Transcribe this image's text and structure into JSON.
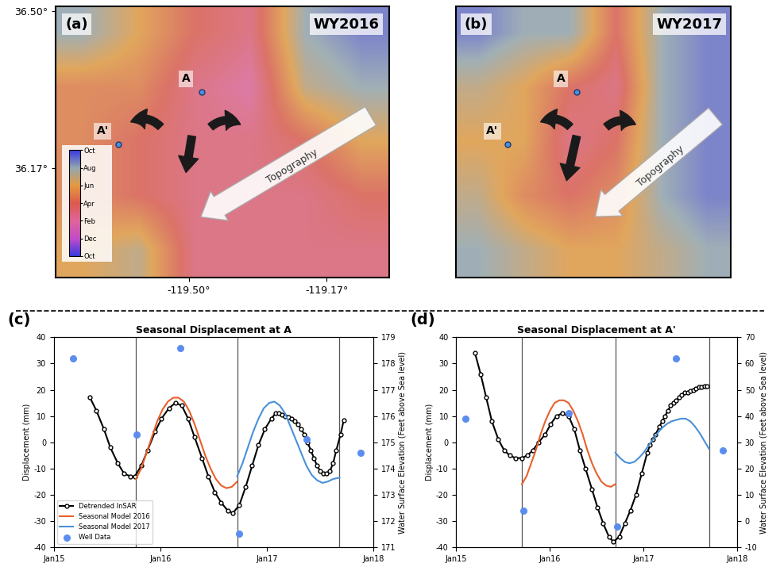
{
  "chart_data": [
    {
      "type": "map",
      "panel": "(a)",
      "title": "WY2016",
      "xlim": [
        -119.82,
        -119.02
      ],
      "ylim": [
        35.94,
        36.51
      ],
      "xticks": [
        {
          "value": -119.5,
          "label": "-119.50°"
        },
        {
          "value": -119.17,
          "label": "-119.17°"
        }
      ],
      "yticks": [
        {
          "value": 36.5,
          "label": "36.50°"
        },
        {
          "value": 36.17,
          "label": "36.17°"
        }
      ],
      "points": [
        {
          "label": "A",
          "x": -119.47,
          "y": 36.33
        },
        {
          "label": "A'",
          "x": -119.67,
          "y": 36.22
        }
      ],
      "arrow_label": "Topography",
      "cells": [
        [
          10,
          8,
          6,
          5,
          10,
          11
        ],
        [
          7,
          7,
          5,
          4,
          9,
          10
        ],
        [
          7,
          6,
          5,
          5,
          6,
          8
        ],
        [
          7,
          6,
          5,
          5,
          5,
          6
        ],
        [
          8,
          9,
          5,
          5,
          5,
          5
        ]
      ],
      "colorbar": {
        "range": [
          0,
          12
        ],
        "ticks": [
          {
            "value": 0,
            "label": "Oct"
          },
          {
            "value": 2,
            "label": "Dec"
          },
          {
            "value": 4,
            "label": "Feb"
          },
          {
            "value": 6,
            "label": "Apr"
          },
          {
            "value": 8,
            "label": "Jun"
          },
          {
            "value": 10,
            "label": "Aug"
          },
          {
            "value": 12,
            "label": "Oct"
          }
        ]
      }
    },
    {
      "type": "map",
      "panel": "(b)",
      "title": "WY2017",
      "tick_labels": false,
      "xlim": [
        -119.82,
        -119.02
      ],
      "ylim": [
        35.94,
        36.51
      ],
      "points": [
        {
          "label": "A",
          "x": -119.47,
          "y": 36.33
        },
        {
          "label": "A'",
          "x": -119.67,
          "y": 36.22
        }
      ],
      "arrow_label": "Topography",
      "cells": [
        [
          11,
          10,
          10,
          6,
          10,
          11
        ],
        [
          9,
          8,
          6,
          5,
          10,
          11
        ],
        [
          8,
          8,
          5,
          6,
          10,
          11
        ],
        [
          9,
          7,
          6,
          7,
          10,
          11
        ],
        [
          10,
          9,
          8,
          8,
          9,
          10
        ]
      ]
    },
    {
      "type": "line",
      "panel": "(c)",
      "title": "Seasonal Displacement at A",
      "y_label": "Displacement (mm)",
      "y2_label": "Water Surface Elevation (Feet above Sea level)",
      "xlim": [
        2015,
        2018
      ],
      "xticks": [
        {
          "value": 2015,
          "label": "Jan15"
        },
        {
          "value": 2016,
          "label": "Jan16"
        },
        {
          "value": 2017,
          "label": "Jan17"
        },
        {
          "value": 2018,
          "label": "Jan18"
        }
      ],
      "ylim": [
        -40,
        40
      ],
      "yticks": [
        -40,
        -30,
        -20,
        -10,
        0,
        10,
        20,
        30,
        40
      ],
      "y2lim": [
        171,
        179
      ],
      "y2ticks": [
        171,
        172,
        173,
        174,
        175,
        176,
        177,
        178,
        179
      ],
      "vlines": [
        2015.77,
        2016.72,
        2017.68
      ],
      "legend": "lower left",
      "series": [
        {
          "name": "Detrended InSAR",
          "color": "#000000",
          "marker": "o",
          "line_style": "solid",
          "x": [
            2015.34,
            2015.4,
            2015.47,
            2015.53,
            2015.6,
            2015.66,
            2015.72,
            2015.76,
            2015.82,
            2015.88,
            2015.95,
            2016.01,
            2016.08,
            2016.14,
            2016.2,
            2016.26,
            2016.32,
            2016.39,
            2016.45,
            2016.51,
            2016.57,
            2016.63,
            2016.68,
            2016.74,
            2016.8,
            2016.86,
            2016.92,
            2016.98,
            2017.04,
            2017.08,
            2017.11,
            2017.14,
            2017.17,
            2017.2,
            2017.23,
            2017.26,
            2017.29,
            2017.32,
            2017.35,
            2017.38,
            2017.41,
            2017.44,
            2017.47,
            2017.5,
            2017.53,
            2017.56,
            2017.59,
            2017.62,
            2017.65,
            2017.69,
            2017.72
          ],
          "values": [
            17,
            12,
            5,
            -2,
            -8,
            -12,
            -13,
            -13,
            -9,
            -3,
            4,
            9,
            13,
            15,
            14,
            9,
            2,
            -6,
            -13,
            -19,
            -23,
            -26,
            -27,
            -24,
            -17,
            -9,
            -1,
            5,
            9,
            11,
            11,
            10.5,
            10,
            9.5,
            9,
            8,
            7,
            5,
            3,
            0,
            -3,
            -6,
            -9,
            -11,
            -12,
            -12,
            -11,
            -8,
            -3,
            3,
            8.5
          ]
        },
        {
          "name": "Seasonal Model 2016",
          "color": "#e8602c",
          "marker": "none",
          "line_style": "solid",
          "x": [
            2015.77,
            2015.82,
            2015.87,
            2015.92,
            2015.97,
            2016.02,
            2016.07,
            2016.12,
            2016.17,
            2016.22,
            2016.27,
            2016.32,
            2016.37,
            2016.42,
            2016.47,
            2016.52,
            2016.57,
            2016.62,
            2016.67,
            2016.72
          ],
          "values": [
            -14,
            -10,
            -4,
            2,
            8,
            12.5,
            15.5,
            17,
            17,
            15.5,
            12,
            7,
            1,
            -5,
            -10,
            -14,
            -16.5,
            -17.5,
            -17,
            -15
          ]
        },
        {
          "name": "Seasonal Model 2017",
          "color": "#4a90d9",
          "marker": "none",
          "line_style": "solid",
          "x": [
            2016.72,
            2016.77,
            2016.82,
            2016.87,
            2016.92,
            2016.97,
            2017.02,
            2017.07,
            2017.12,
            2017.17,
            2017.22,
            2017.27,
            2017.32,
            2017.37,
            2017.42,
            2017.47,
            2017.52,
            2017.57,
            2017.62,
            2017.68
          ],
          "values": [
            -13,
            -8,
            -2,
            4,
            9,
            13,
            15,
            15.5,
            14,
            11,
            6,
            1,
            -4,
            -9,
            -12.5,
            -14.5,
            -15.5,
            -15,
            -14,
            -13.5
          ]
        },
        {
          "name": "Well Data",
          "type": "scatter",
          "axis": "y2",
          "color": "#5b8def",
          "marker": "o",
          "x": [
            2015.18,
            2015.78,
            2016.19,
            2016.74,
            2017.37,
            2017.88
          ],
          "values": [
            178.2,
            175.3,
            178.6,
            171.5,
            175.1,
            174.6
          ]
        }
      ]
    },
    {
      "type": "line",
      "panel": "(d)",
      "title": "Seasonal Displacement at A'",
      "y_label": "Displacement (mm)",
      "y2_label": "Water Surface Elevation (Feet above Sea level)",
      "xlim": [
        2015,
        2018
      ],
      "xticks": [
        {
          "value": 2015,
          "label": "Jan15"
        },
        {
          "value": 2016,
          "label": "Jan16"
        },
        {
          "value": 2017,
          "label": "Jan17"
        },
        {
          "value": 2018,
          "label": "Jan18"
        }
      ],
      "ylim": [
        -40,
        40
      ],
      "yticks": [
        -40,
        -30,
        -20,
        -10,
        0,
        10,
        20,
        30,
        40
      ],
      "y2lim": [
        -10,
        70
      ],
      "y2ticks": [
        -10,
        0,
        10,
        20,
        30,
        40,
        50,
        60,
        70
      ],
      "vlines": [
        2015.7,
        2016.7,
        2017.7
      ],
      "series": [
        {
          "color": "#000000",
          "marker": "o",
          "line_style": "solid",
          "x": [
            2015.2,
            2015.26,
            2015.32,
            2015.38,
            2015.45,
            2015.51,
            2015.57,
            2015.63,
            2015.7,
            2015.76,
            2015.82,
            2015.88,
            2015.95,
            2016.01,
            2016.07,
            2016.13,
            2016.2,
            2016.26,
            2016.32,
            2016.38,
            2016.45,
            2016.51,
            2016.57,
            2016.63,
            2016.68,
            2016.74,
            2016.8,
            2016.86,
            2016.92,
            2016.98,
            2017.04,
            2017.07,
            2017.1,
            2017.13,
            2017.17,
            2017.2,
            2017.23,
            2017.26,
            2017.29,
            2017.32,
            2017.35,
            2017.38,
            2017.41,
            2017.44,
            2017.47,
            2017.5,
            2017.53,
            2017.56,
            2017.59,
            2017.62,
            2017.65,
            2017.68
          ],
          "values": [
            34,
            26,
            17,
            8,
            1,
            -3,
            -5,
            -6,
            -6,
            -5,
            -3,
            0,
            3,
            7,
            10,
            11,
            10,
            5,
            -3,
            -10,
            -18,
            -25,
            -31,
            -36,
            -38,
            -36,
            -31,
            -26,
            -20,
            -12,
            -4,
            -1,
            1,
            3,
            6,
            8,
            10,
            12,
            14,
            15,
            16,
            17,
            18,
            19,
            19,
            19.5,
            20,
            20.5,
            21,
            21,
            21.5,
            21.5
          ]
        },
        {
          "color": "#e8602c",
          "marker": "none",
          "line_style": "solid",
          "x": [
            2015.7,
            2015.75,
            2015.8,
            2015.85,
            2015.9,
            2015.95,
            2016.0,
            2016.05,
            2016.1,
            2016.15,
            2016.2,
            2016.25,
            2016.3,
            2016.35,
            2016.4,
            2016.45,
            2016.5,
            2016.55,
            2016.6,
            2016.65,
            2016.7
          ],
          "values": [
            -16,
            -13,
            -8,
            -3,
            3,
            8,
            12,
            15,
            16,
            16,
            15,
            12,
            8,
            3,
            -3,
            -8,
            -12,
            -15,
            -16.5,
            -17,
            -16
          ]
        },
        {
          "color": "#4a90d9",
          "marker": "none",
          "line_style": "solid",
          "x": [
            2016.7,
            2016.75,
            2016.8,
            2016.85,
            2016.9,
            2016.95,
            2017.0,
            2017.05,
            2017.1,
            2017.15,
            2017.2,
            2017.25,
            2017.3,
            2017.35,
            2017.4,
            2017.45,
            2017.5,
            2017.55,
            2017.6,
            2017.65,
            2017.7
          ],
          "values": [
            -4,
            -6,
            -7.5,
            -8,
            -7.5,
            -6,
            -4,
            -1.5,
            1,
            3.5,
            5.5,
            7,
            8,
            8.5,
            9,
            9,
            8,
            6,
            3.5,
            0.5,
            -2.5
          ]
        },
        {
          "type": "scatter",
          "axis": "y2",
          "color": "#5b8def",
          "marker": "o",
          "x": [
            2015.1,
            2015.72,
            2016.2,
            2016.72,
            2017.35,
            2017.85
          ],
          "values": [
            39,
            4,
            41,
            -2,
            62,
            27
          ]
        }
      ]
    }
  ]
}
